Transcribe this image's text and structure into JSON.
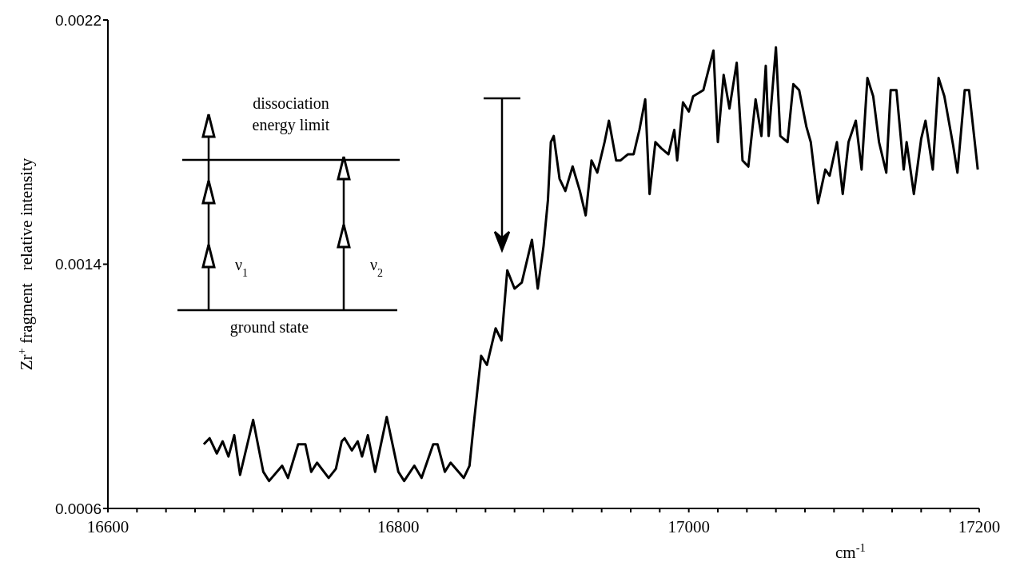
{
  "chart_data": {
    "type": "line",
    "xlabel": "cm$^{-1}$",
    "ylabel": "Zr$^{+}$ fragment   relative intensity",
    "xlim": [
      16600,
      17200
    ],
    "xticks": [
      16600,
      {
        "value": 16620,
        "label": null
      },
      {
        "value": 16640,
        "label": null
      },
      {
        "value": 16660,
        "label": null
      },
      {
        "value": 16680,
        "label": null
      },
      {
        "value": 16700,
        "label": null
      },
      {
        "value": 16720,
        "label": null
      },
      {
        "value": 16740,
        "label": null
      },
      {
        "value": 16760,
        "label": null
      },
      {
        "value": 16780,
        "label": null
      },
      16800,
      {
        "value": 16820,
        "label": null
      },
      {
        "value": 16840,
        "label": null
      },
      {
        "value": 16860,
        "label": null
      },
      {
        "value": 16880,
        "label": null
      },
      {
        "value": 16900,
        "label": null
      },
      {
        "value": 16920,
        "label": null
      },
      {
        "value": 16940,
        "label": null
      },
      {
        "value": 16960,
        "label": null
      },
      {
        "value": 16980,
        "label": null
      },
      17000,
      {
        "value": 17020,
        "label": null
      },
      {
        "value": 17040,
        "label": null
      },
      {
        "value": 17060,
        "label": null
      },
      {
        "value": 17080,
        "label": null
      },
      {
        "value": 17100,
        "label": null
      },
      {
        "value": 17120,
        "label": null
      },
      {
        "value": 17140,
        "label": null
      },
      {
        "value": 17160,
        "label": null
      },
      {
        "value": 17180,
        "label": null
      },
      17200
    ],
    "ylim": [
      0.0006,
      0.0022
    ],
    "yticks": [
      0.0006,
      0.0014,
      0.0022
    ],
    "marker": "none",
    "line_style": "solid",
    "annotations": [
      "dissociation energy limit",
      "ground state",
      "ν$_{1}$",
      "ν$_{2}$"
    ],
    "series": [
      {
        "color": "#000000",
        "x": [
          16666,
          16670,
          16675,
          16679,
          16683,
          16687,
          16691,
          16700,
          16707,
          16711,
          16720,
          16724,
          16731,
          16736,
          16740,
          16744,
          16752,
          16757,
          16761,
          16763,
          16768,
          16772,
          16775,
          16779,
          16784,
          16792,
          16800,
          16804,
          16811,
          16816,
          16824,
          16827,
          16832,
          16836,
          16845,
          16849,
          16852,
          16857,
          16861,
          16867,
          16871,
          16875,
          16880,
          16885,
          16892,
          16896,
          16900,
          16903,
          16905,
          16907,
          16911,
          16915,
          16920,
          16925,
          16929,
          16933,
          16937,
          16942,
          16945,
          16950,
          16953,
          16958,
          16962,
          16966,
          16970,
          16973,
          16977,
          16981,
          16986,
          16990,
          16992,
          16996,
          17000,
          17003,
          17010,
          17017,
          17020,
          17024,
          17028,
          17033,
          17037,
          17041,
          17046,
          17050,
          17053,
          17055,
          17060,
          17063,
          17068,
          17072,
          17076,
          17081,
          17084,
          17089,
          17094,
          17097,
          17102,
          17106,
          17110,
          17115,
          17119,
          17123,
          17127,
          17131,
          17136,
          17139,
          17143,
          17148,
          17150,
          17155,
          17160,
          17163,
          17168,
          17172,
          17176,
          17182,
          17185,
          17190,
          17193,
          17199
        ],
        "values": [
          0.00081,
          0.00083,
          0.00078,
          0.00082,
          0.00077,
          0.00084,
          0.00071,
          0.00089,
          0.00072,
          0.00069,
          0.00074,
          0.0007,
          0.00081,
          0.00081,
          0.00072,
          0.00075,
          0.0007,
          0.00073,
          0.00082,
          0.00083,
          0.00079,
          0.00082,
          0.00077,
          0.00084,
          0.00072,
          0.0009,
          0.00072,
          0.00069,
          0.00074,
          0.0007,
          0.00081,
          0.00081,
          0.00072,
          0.00075,
          0.0007,
          0.00074,
          0.00088,
          0.0011,
          0.00107,
          0.00119,
          0.00115,
          0.00138,
          0.00132,
          0.00134,
          0.00148,
          0.00132,
          0.00146,
          0.00161,
          0.0018,
          0.00182,
          0.00168,
          0.00164,
          0.00172,
          0.00164,
          0.00156,
          0.00174,
          0.0017,
          0.0018,
          0.00187,
          0.00174,
          0.00174,
          0.00176,
          0.00176,
          0.00184,
          0.00194,
          0.00163,
          0.0018,
          0.00178,
          0.00176,
          0.00184,
          0.00174,
          0.00193,
          0.0019,
          0.00195,
          0.00197,
          0.0021,
          0.0018,
          0.00202,
          0.00191,
          0.00206,
          0.00174,
          0.00172,
          0.00194,
          0.00182,
          0.00205,
          0.00182,
          0.00211,
          0.00182,
          0.0018,
          0.00199,
          0.00197,
          0.00185,
          0.0018,
          0.0016,
          0.00171,
          0.00169,
          0.0018,
          0.00163,
          0.0018,
          0.00187,
          0.00171,
          0.00201,
          0.00195,
          0.0018,
          0.0017,
          0.00197,
          0.00197,
          0.00171,
          0.0018,
          0.00163,
          0.00181,
          0.00187,
          0.00171,
          0.00201,
          0.00195,
          0.00179,
          0.0017,
          0.00197,
          0.00197,
          0.00171
        ]
      }
    ]
  }
}
